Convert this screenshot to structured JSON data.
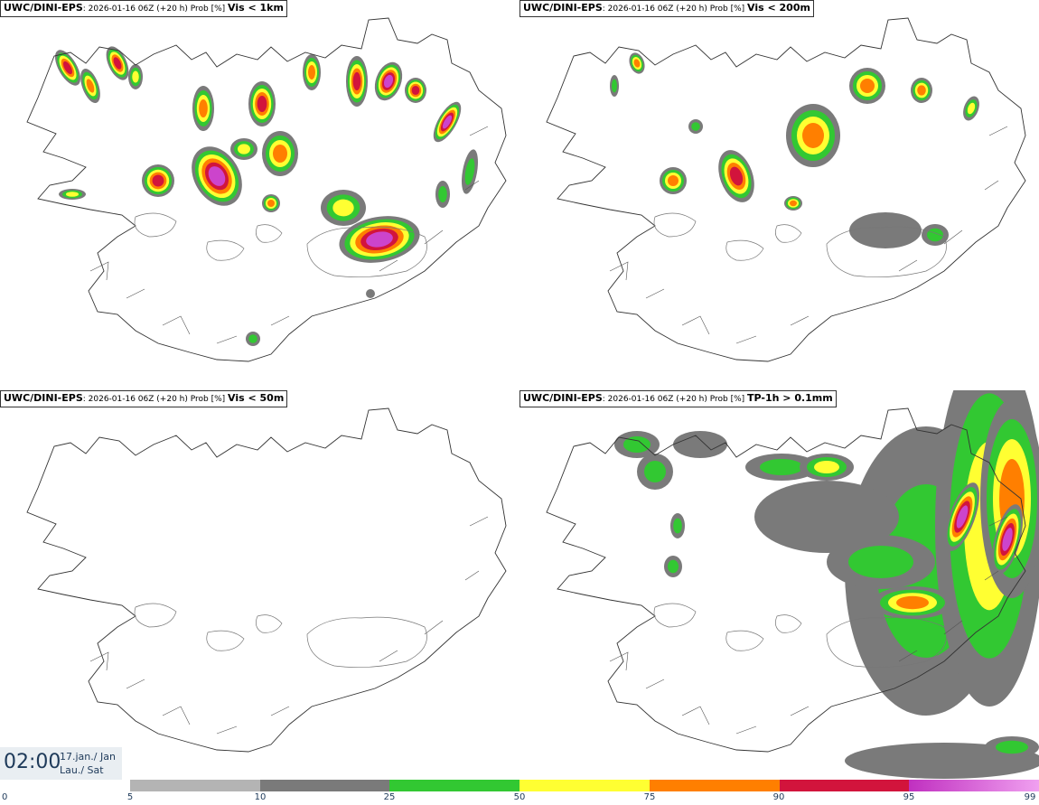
{
  "panels": [
    {
      "source": "UWC/DINI-EPS",
      "meta": ": 2026-01-16 06Z (+20 h) Prob [%] ",
      "variable": "Vis < 1km"
    },
    {
      "source": "UWC/DINI-EPS",
      "meta": ": 2026-01-16 06Z (+20 h) Prob [%] ",
      "variable": "Vis < 200m"
    },
    {
      "source": "UWC/DINI-EPS",
      "meta": ": 2026-01-16 06Z (+20 h) Prob [%] ",
      "variable": "Vis < 50m"
    },
    {
      "source": "UWC/DINI-EPS",
      "meta": ": 2026-01-16 06Z (+20 h) Prob [%] ",
      "variable": "TP-1h > 0.1mm"
    }
  ],
  "valid_time": {
    "time": "02:00",
    "date_line1": "17.jan./ Jan",
    "date_line2": "Lau./ Sat"
  },
  "colorbar": {
    "zero_label": "0",
    "ticks": [
      "5",
      "10",
      "25",
      "50",
      "75",
      "90",
      "95",
      "99"
    ],
    "colors": [
      "#b4b4b4",
      "#7a7a7a",
      "#32c832",
      "#ffff32",
      "#ff7f00",
      "#d2143c",
      "#cc44cc"
    ]
  },
  "palette": {
    "p5": "#b4b4b4",
    "p10": "#7a7a7a",
    "p25": "#32c832",
    "p50": "#ffff32",
    "p75": "#ff7f00",
    "p90": "#d2143c",
    "p95": "#cc44cc",
    "p99": "#f0a0f0",
    "coast": "#333333"
  }
}
